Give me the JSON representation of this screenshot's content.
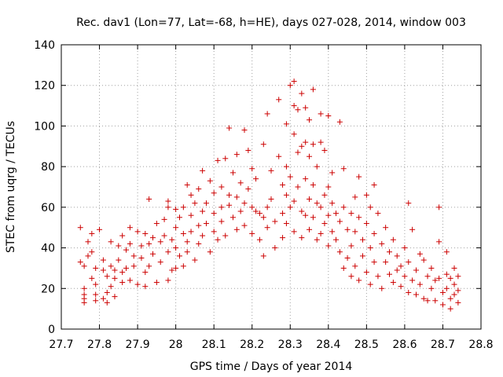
{
  "chart_data": {
    "type": "scatter",
    "title": "Rec. dav1 (Lon=77, Lat=-68, h=HE), days 027-028, 2014, window 003",
    "xlabel": "GPS time / Days of year 2014",
    "ylabel": "STEC from uqrg / TECUs",
    "xlim": [
      27.7,
      28.8
    ],
    "ylim": [
      0,
      140
    ],
    "xticks": [
      "27.7",
      "27.8",
      "27.9",
      "28",
      "28.1",
      "28.2",
      "28.3",
      "28.4",
      "28.5",
      "28.6",
      "28.7",
      "28.8"
    ],
    "yticks": [
      "0",
      "20",
      "40",
      "60",
      "80",
      "100",
      "120",
      "140"
    ],
    "grid": true,
    "marker": "+",
    "color": "#cc0000",
    "series": [
      {
        "name": "STEC",
        "points": [
          [
            27.75,
            50
          ],
          [
            27.75,
            33
          ],
          [
            27.76,
            31
          ],
          [
            27.76,
            20
          ],
          [
            27.76,
            17
          ],
          [
            27.76,
            15
          ],
          [
            27.76,
            13
          ],
          [
            27.77,
            43
          ],
          [
            27.77,
            36
          ],
          [
            27.78,
            25
          ],
          [
            27.78,
            47
          ],
          [
            27.78,
            38
          ],
          [
            27.79,
            30
          ],
          [
            27.79,
            22
          ],
          [
            27.79,
            17
          ],
          [
            27.79,
            14
          ],
          [
            27.8,
            49
          ],
          [
            27.81,
            34
          ],
          [
            27.81,
            29
          ],
          [
            27.81,
            15
          ],
          [
            27.82,
            26
          ],
          [
            27.82,
            18
          ],
          [
            27.82,
            13
          ],
          [
            27.83,
            43
          ],
          [
            27.83,
            31
          ],
          [
            27.83,
            21
          ],
          [
            27.84,
            29
          ],
          [
            27.84,
            25
          ],
          [
            27.84,
            16
          ],
          [
            27.85,
            41
          ],
          [
            27.85,
            34
          ],
          [
            27.86,
            46
          ],
          [
            27.86,
            28
          ],
          [
            27.86,
            23
          ],
          [
            27.87,
            39
          ],
          [
            27.87,
            30
          ],
          [
            27.88,
            50
          ],
          [
            27.88,
            42
          ],
          [
            27.88,
            24
          ],
          [
            27.89,
            36
          ],
          [
            27.89,
            31
          ],
          [
            27.9,
            48
          ],
          [
            27.9,
            22
          ],
          [
            27.91,
            41
          ],
          [
            27.91,
            35
          ],
          [
            27.92,
            47
          ],
          [
            27.92,
            28
          ],
          [
            27.92,
            21
          ],
          [
            27.93,
            64
          ],
          [
            27.93,
            42
          ],
          [
            27.93,
            31
          ],
          [
            27.94,
            45
          ],
          [
            27.94,
            37
          ],
          [
            27.95,
            52
          ],
          [
            27.95,
            23
          ],
          [
            27.96,
            33
          ],
          [
            27.96,
            43
          ],
          [
            27.97,
            54
          ],
          [
            27.97,
            46
          ],
          [
            27.98,
            63
          ],
          [
            27.98,
            60
          ],
          [
            27.98,
            38
          ],
          [
            27.98,
            24
          ],
          [
            27.99,
            29
          ],
          [
            27.99,
            44
          ],
          [
            28.0,
            59
          ],
          [
            28.0,
            50
          ],
          [
            28.0,
            40
          ],
          [
            28.0,
            30
          ],
          [
            28.01,
            55
          ],
          [
            28.01,
            36
          ],
          [
            28.02,
            60
          ],
          [
            28.02,
            47
          ],
          [
            28.02,
            31
          ],
          [
            28.03,
            71
          ],
          [
            28.03,
            43
          ],
          [
            28.03,
            38
          ],
          [
            28.04,
            66
          ],
          [
            28.04,
            56
          ],
          [
            28.04,
            48
          ],
          [
            28.05,
            62
          ],
          [
            28.05,
            34
          ],
          [
            28.06,
            69
          ],
          [
            28.06,
            51
          ],
          [
            28.06,
            42
          ],
          [
            28.07,
            58
          ],
          [
            28.07,
            46
          ],
          [
            28.07,
            78
          ],
          [
            28.08,
            62
          ],
          [
            28.08,
            52
          ],
          [
            28.09,
            73
          ],
          [
            28.09,
            38
          ],
          [
            28.1,
            67
          ],
          [
            28.1,
            57
          ],
          [
            28.1,
            48
          ],
          [
            28.11,
            83
          ],
          [
            28.11,
            44
          ],
          [
            28.12,
            70
          ],
          [
            28.12,
            53
          ],
          [
            28.12,
            60
          ],
          [
            28.13,
            84
          ],
          [
            28.13,
            46
          ],
          [
            28.14,
            61
          ],
          [
            28.14,
            99
          ],
          [
            28.14,
            66
          ],
          [
            28.15,
            77
          ],
          [
            28.15,
            55
          ],
          [
            28.16,
            86
          ],
          [
            28.16,
            65
          ],
          [
            28.16,
            49
          ],
          [
            28.17,
            72
          ],
          [
            28.17,
            58
          ],
          [
            28.18,
            98
          ],
          [
            28.18,
            62
          ],
          [
            28.18,
            51
          ],
          [
            28.19,
            88
          ],
          [
            28.19,
            69
          ],
          [
            28.2,
            60
          ],
          [
            28.2,
            47
          ],
          [
            28.2,
            79
          ],
          [
            28.21,
            74
          ],
          [
            28.21,
            58
          ],
          [
            28.22,
            57
          ],
          [
            28.22,
            44
          ],
          [
            28.23,
            91
          ],
          [
            28.23,
            55
          ],
          [
            28.23,
            36
          ],
          [
            28.24,
            106
          ],
          [
            28.24,
            60
          ],
          [
            28.24,
            50
          ],
          [
            28.25,
            78
          ],
          [
            28.25,
            64
          ],
          [
            28.26,
            53
          ],
          [
            28.26,
            40
          ],
          [
            28.27,
            85
          ],
          [
            28.27,
            113
          ],
          [
            28.28,
            71
          ],
          [
            28.28,
            57
          ],
          [
            28.28,
            45
          ],
          [
            28.29,
            101
          ],
          [
            28.29,
            80
          ],
          [
            28.29,
            66
          ],
          [
            28.29,
            52
          ],
          [
            28.3,
            120
          ],
          [
            28.3,
            75
          ],
          [
            28.3,
            60
          ],
          [
            28.31,
            122
          ],
          [
            28.31,
            110
          ],
          [
            28.31,
            96
          ],
          [
            28.31,
            63
          ],
          [
            28.31,
            48
          ],
          [
            28.32,
            108
          ],
          [
            28.32,
            87
          ],
          [
            28.32,
            70
          ],
          [
            28.33,
            116
          ],
          [
            28.33,
            90
          ],
          [
            28.33,
            58
          ],
          [
            28.33,
            45
          ],
          [
            28.34,
            109
          ],
          [
            28.34,
            92
          ],
          [
            28.34,
            74
          ],
          [
            28.34,
            56
          ],
          [
            28.35,
            103
          ],
          [
            28.35,
            85
          ],
          [
            28.35,
            64
          ],
          [
            28.35,
            49
          ],
          [
            28.36,
            118
          ],
          [
            28.36,
            91
          ],
          [
            28.36,
            71
          ],
          [
            28.36,
            55
          ],
          [
            28.37,
            80
          ],
          [
            28.37,
            62
          ],
          [
            28.37,
            44
          ],
          [
            28.38,
            106
          ],
          [
            28.38,
            92
          ],
          [
            28.38,
            60
          ],
          [
            28.38,
            47
          ],
          [
            28.39,
            88
          ],
          [
            28.39,
            66
          ],
          [
            28.39,
            52
          ],
          [
            28.4,
            105
          ],
          [
            28.4,
            70
          ],
          [
            28.4,
            56
          ],
          [
            28.4,
            41
          ],
          [
            28.41,
            77
          ],
          [
            28.41,
            62
          ],
          [
            28.41,
            48
          ],
          [
            28.42,
            57
          ],
          [
            28.42,
            44
          ],
          [
            28.43,
            102
          ],
          [
            28.43,
            53
          ],
          [
            28.43,
            38
          ],
          [
            28.44,
            79
          ],
          [
            28.44,
            60
          ],
          [
            28.44,
            30
          ],
          [
            28.45,
            49
          ],
          [
            28.45,
            35
          ],
          [
            28.46,
            57
          ],
          [
            28.46,
            41
          ],
          [
            28.46,
            26
          ],
          [
            28.47,
            65
          ],
          [
            28.47,
            48
          ],
          [
            28.47,
            31
          ],
          [
            28.48,
            75
          ],
          [
            28.48,
            55
          ],
          [
            28.48,
            24
          ],
          [
            28.49,
            44
          ],
          [
            28.49,
            36
          ],
          [
            28.5,
            66
          ],
          [
            28.5,
            52
          ],
          [
            28.5,
            28
          ],
          [
            28.51,
            60
          ],
          [
            28.51,
            40
          ],
          [
            28.51,
            22
          ],
          [
            28.52,
            71
          ],
          [
            28.52,
            47
          ],
          [
            28.52,
            33
          ],
          [
            28.53,
            57
          ],
          [
            28.53,
            26
          ],
          [
            28.54,
            42
          ],
          [
            28.54,
            20
          ],
          [
            28.55,
            50
          ],
          [
            28.55,
            33
          ],
          [
            28.56,
            38
          ],
          [
            28.56,
            27
          ],
          [
            28.57,
            44
          ],
          [
            28.57,
            23
          ],
          [
            28.58,
            36
          ],
          [
            28.58,
            29
          ],
          [
            28.59,
            31
          ],
          [
            28.59,
            21
          ],
          [
            28.6,
            40
          ],
          [
            28.6,
            26
          ],
          [
            28.61,
            62
          ],
          [
            28.61,
            33
          ],
          [
            28.61,
            18
          ],
          [
            28.62,
            49
          ],
          [
            28.62,
            24
          ],
          [
            28.63,
            29
          ],
          [
            28.63,
            17
          ],
          [
            28.64,
            37
          ],
          [
            28.64,
            22
          ],
          [
            28.65,
            34
          ],
          [
            28.65,
            15
          ],
          [
            28.66,
            26
          ],
          [
            28.66,
            14
          ],
          [
            28.67,
            30
          ],
          [
            28.67,
            20
          ],
          [
            28.68,
            24
          ],
          [
            28.68,
            14
          ],
          [
            28.69,
            60
          ],
          [
            28.69,
            43
          ],
          [
            28.69,
            25
          ],
          [
            28.7,
            18
          ],
          [
            28.7,
            12
          ],
          [
            28.71,
            38
          ],
          [
            28.71,
            27
          ],
          [
            28.71,
            20
          ],
          [
            28.72,
            25
          ],
          [
            28.72,
            15
          ],
          [
            28.72,
            10
          ],
          [
            28.73,
            30
          ],
          [
            28.73,
            22
          ],
          [
            28.73,
            17
          ],
          [
            28.74,
            26
          ],
          [
            28.74,
            19
          ],
          [
            28.74,
            13
          ]
        ]
      }
    ]
  }
}
